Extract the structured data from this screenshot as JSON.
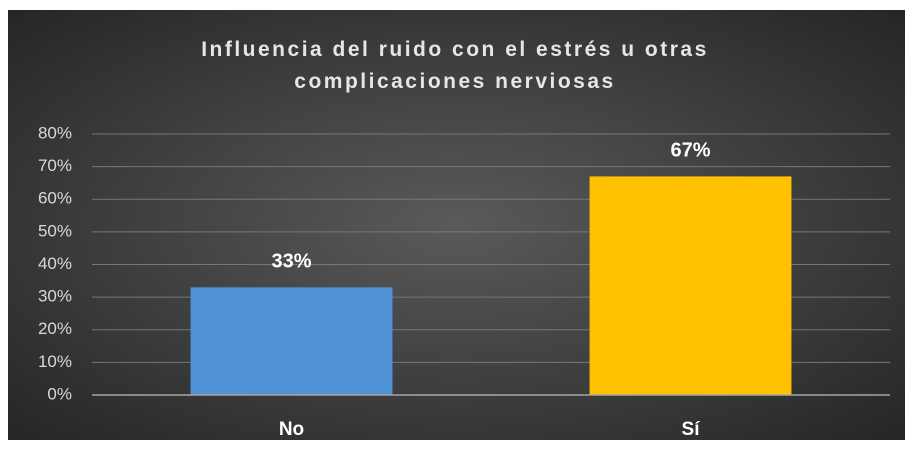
{
  "chart_data": {
    "type": "bar",
    "title": "Influencia del ruido con el estrés u otras complicaciones nerviosas",
    "categories": [
      "No",
      "Sí"
    ],
    "values": [
      33,
      67
    ],
    "value_labels": [
      "33%",
      "67%"
    ],
    "colors": [
      "#4f93d6",
      "#ffc000"
    ],
    "ylim": [
      0,
      80
    ],
    "yticks": [
      {
        "value": 0,
        "label": "0%"
      },
      {
        "value": 10,
        "label": "10%"
      },
      {
        "value": 20,
        "label": "20%"
      },
      {
        "value": 30,
        "label": "30%"
      },
      {
        "value": 40,
        "label": "40%"
      },
      {
        "value": 50,
        "label": "50%"
      },
      {
        "value": 60,
        "label": "60%"
      },
      {
        "value": 70,
        "label": "70%"
      },
      {
        "value": 80,
        "label": "80%"
      }
    ],
    "grid": true
  }
}
